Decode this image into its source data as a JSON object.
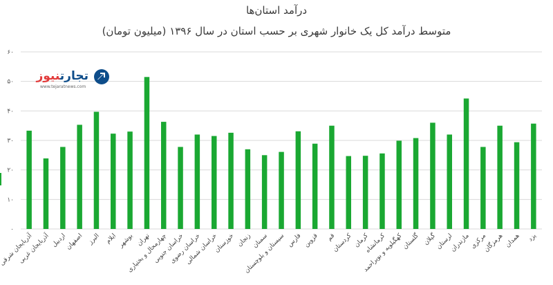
{
  "chart_data": {
    "type": "bar",
    "title": "درآمد استان‌ها",
    "subtitle": "متوسط درآمد کل یک خانوار شهری بر حسب استان در سال ۱۳۹۶ (میلیون تومان)",
    "categories": [
      "آذربایجان شرقی",
      "آذربایجان غربی",
      "اردبیل",
      "اصفهان",
      "البرز",
      "ایلام",
      "بوشهر",
      "تهران",
      "چهارمحال و بختیاری",
      "خراسان جنوبی",
      "خراسان رضوی",
      "خراسان شمالی",
      "خوزستان",
      "زنجان",
      "سمنان",
      "سیستان و بلوچستان",
      "فارس",
      "قزوین",
      "قم",
      "کردستان",
      "کرمان",
      "کرمانشاه",
      "کهگیلویه و بویراحمد",
      "گلستان",
      "گیلان",
      "لرستان",
      "مازندران",
      "مرکزی",
      "هرمزگان",
      "همدان",
      "یزد"
    ],
    "values": [
      33.3,
      23.9,
      27.8,
      35.3,
      39.7,
      32.3,
      33.0,
      51.5,
      36.3,
      27.8,
      32.0,
      31.5,
      32.6,
      27.0,
      25.0,
      26.1,
      33.1,
      28.9,
      35.0,
      24.7,
      24.8,
      25.6,
      29.9,
      30.8,
      36.0,
      32.0,
      44.2,
      27.8,
      35.0,
      29.4,
      35.7
    ],
    "ytick_labels": [
      "۰",
      "۱۰",
      "۲۰",
      "۳۰",
      "۴۰",
      "۵۰",
      "۶۰"
    ],
    "ylim": [
      0,
      60
    ],
    "grid": true,
    "bar_color": "#1aa832",
    "grid_color": "#d9d9d9"
  },
  "logo": {
    "name_part1": "تجارت",
    "name_part2": "نیوز",
    "url": "www.tejaratnews.com",
    "icon": "arrow-logo-icon"
  }
}
